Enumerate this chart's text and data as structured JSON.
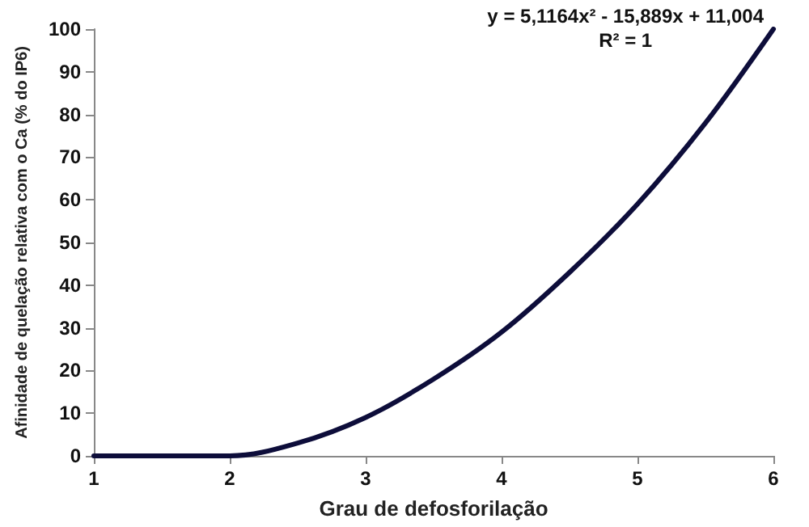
{
  "chart_data": {
    "type": "line",
    "xlabel": "Grau de defosforilação",
    "ylabel": "Afinidade de quelação relativa com o Ca (% do IP6)",
    "annotations": [
      "y = 5,1164x² - 15,889x + 11,004",
      "R² = 1"
    ],
    "series": [
      {
        "color": "#0d0d3a",
        "x": [
          1,
          1.5,
          2,
          2.5,
          3,
          3.5,
          4,
          4.5,
          5,
          5.5,
          6
        ],
        "values": [
          0,
          0,
          0,
          3,
          9,
          18,
          29,
          43,
          59,
          78,
          100
        ]
      }
    ],
    "xlim": [
      1,
      6
    ],
    "xticks": [
      1,
      2,
      3,
      4,
      5,
      6
    ],
    "ylim": [
      0,
      100
    ],
    "yticks": [
      0,
      10,
      20,
      30,
      40,
      50,
      60,
      70,
      80,
      90,
      100
    ],
    "grid": false,
    "marker": "none",
    "line_style": "solid"
  }
}
